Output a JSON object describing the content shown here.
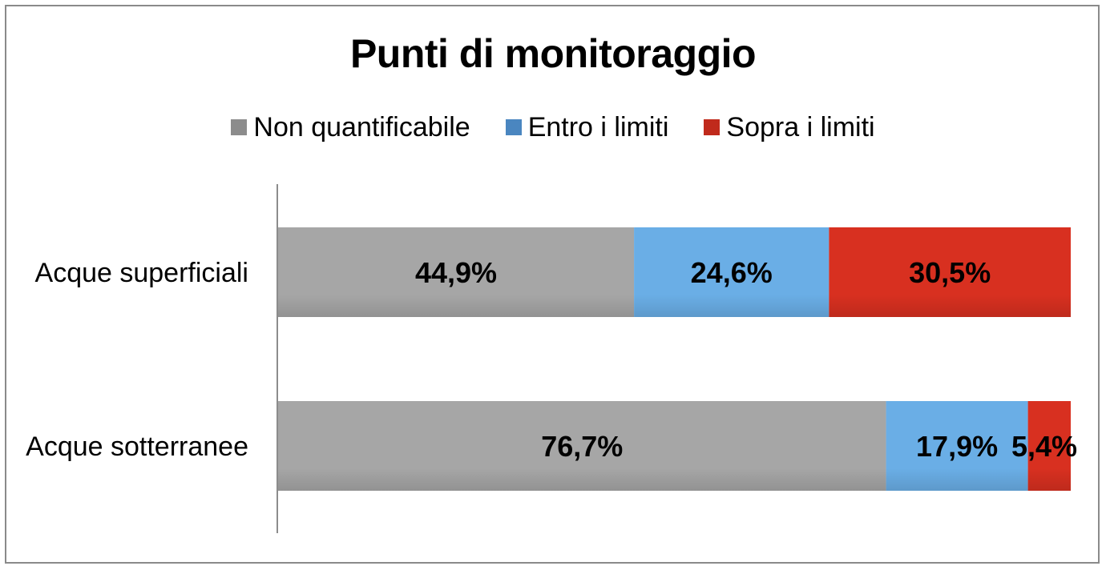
{
  "chart_data": {
    "type": "bar",
    "orientation": "horizontal",
    "stacked": "percent",
    "title": "Punti di monitoraggio",
    "categories": [
      "Acque superficiali",
      "Acque sotterranee"
    ],
    "series": [
      {
        "name": "Non quantificabile",
        "values": [
          44.9,
          76.7
        ],
        "labels": [
          "44,9%",
          "76,7%"
        ],
        "color": "#a6a6a6"
      },
      {
        "name": "Entro i limiti",
        "values": [
          24.6,
          17.9
        ],
        "labels": [
          "24,6%",
          "17,9%"
        ],
        "color": "#6aaee6"
      },
      {
        "name": "Sopra i limiti",
        "values": [
          30.5,
          5.4
        ],
        "labels": [
          "30,5%",
          "5,4%"
        ],
        "color": "#d83020"
      }
    ],
    "xlim": [
      0,
      100
    ],
    "legend_position": "top-center",
    "grid": false
  }
}
